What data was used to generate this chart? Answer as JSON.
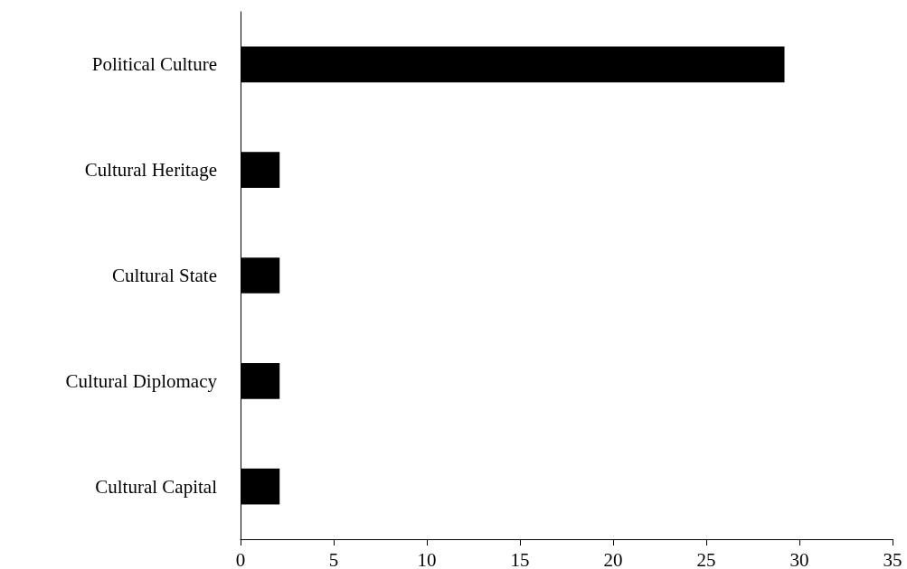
{
  "chart_data": {
    "type": "bar",
    "orientation": "horizontal",
    "categories": [
      "Political Culture",
      "Cultural Heritage",
      "Cultural State",
      "Cultural Diplomacy",
      "Cultural Capital"
    ],
    "values": [
      29.2,
      2.1,
      2.1,
      2.1,
      2.1
    ],
    "color": "#000000",
    "xlim": [
      0,
      35
    ],
    "xticks": [
      0,
      5,
      10,
      15,
      20,
      25,
      30,
      35
    ],
    "grid": false
  }
}
